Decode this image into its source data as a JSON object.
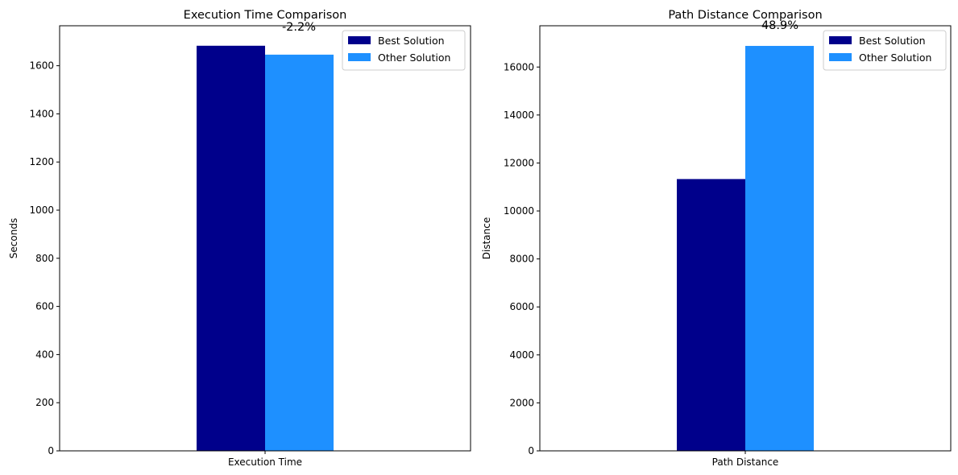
{
  "chart_data": [
    {
      "type": "bar",
      "title": "Execution Time Comparison",
      "xlabel": "",
      "ylabel": "Seconds",
      "categories": [
        "Execution Time"
      ],
      "series": [
        {
          "name": "Best Solution",
          "values": [
            1683
          ]
        },
        {
          "name": "Other Solution",
          "values": [
            1646
          ]
        }
      ],
      "ylim": [
        0,
        1766
      ],
      "yticks": [
        0,
        200,
        400,
        600,
        800,
        1000,
        1200,
        1400,
        1600
      ],
      "annotation": "-2.2%",
      "legend": "top-right",
      "grid": false
    },
    {
      "type": "bar",
      "title": "Path Distance Comparison",
      "xlabel": "",
      "ylabel": "Distance",
      "categories": [
        "Path Distance"
      ],
      "series": [
        {
          "name": "Best Solution",
          "values": [
            11330
          ]
        },
        {
          "name": "Other Solution",
          "values": [
            16880
          ]
        }
      ],
      "ylim": [
        0,
        17720
      ],
      "yticks": [
        0,
        2000,
        4000,
        6000,
        8000,
        10000,
        12000,
        14000,
        16000
      ],
      "annotation": "48.9%",
      "legend": "top-right",
      "grid": false
    }
  ],
  "colors": {
    "best": "#00008b",
    "other": "#1e90ff"
  }
}
